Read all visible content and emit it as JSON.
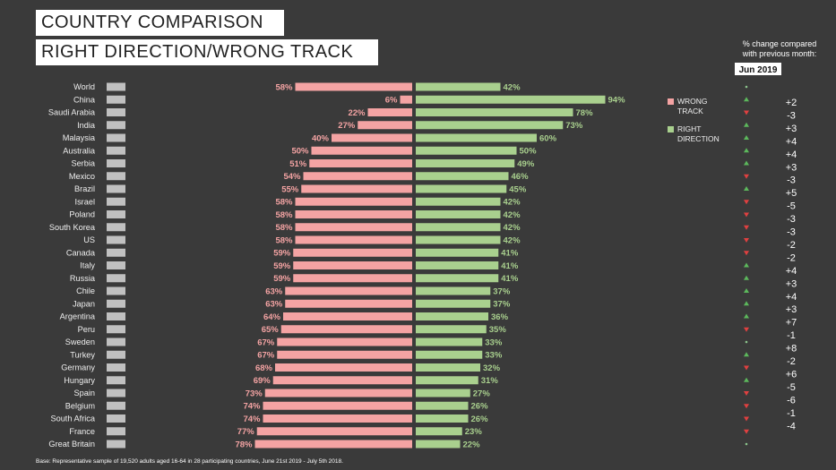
{
  "titles": [
    "COUNTRY COMPARISON",
    "RIGHT DIRECTION/WRONG TRACK"
  ],
  "change_note": [
    "% change compared",
    "with previous month:"
  ],
  "month": "Jun 2019",
  "footer": "Base: Representative sample of 19,520 adults aged 16-64 in 28 participating countries, June 21st 2019 - July 5th 2018.",
  "colors": {
    "wrong": "#f4a3a3",
    "right": "#a9d08e",
    "up": "#5cb85c",
    "down": "#e04040"
  },
  "chart_data": {
    "type": "bar",
    "orientation": "horizontal",
    "categories": [
      "World",
      "China",
      "Saudi Arabia",
      "India",
      "Malaysia",
      "Australia",
      "Serbia",
      "Mexico",
      "Brazil",
      "Israel",
      "Poland",
      "South Korea",
      "US",
      "Canada",
      "Italy",
      "Russia",
      "Chile",
      "Japan",
      "Argentina",
      "Peru",
      "Sweden",
      "Turkey",
      "Germany",
      "Hungary",
      "Spain",
      "Belgium",
      "South Africa",
      "France",
      "Great Britain"
    ],
    "series": [
      {
        "name": "WRONG TRACK",
        "values": [
          58,
          6,
          22,
          27,
          40,
          50,
          51,
          54,
          55,
          58,
          58,
          58,
          58,
          59,
          59,
          59,
          63,
          63,
          64,
          65,
          67,
          67,
          68,
          69,
          73,
          74,
          74,
          77,
          78
        ]
      },
      {
        "name": "RIGHT DIRECTION",
        "values": [
          42,
          94,
          78,
          73,
          60,
          50,
          49,
          46,
          45,
          42,
          42,
          42,
          42,
          41,
          41,
          41,
          37,
          37,
          36,
          35,
          33,
          33,
          32,
          31,
          27,
          26,
          26,
          23,
          22
        ]
      }
    ],
    "legend": [
      "WRONG TRACK",
      "RIGHT DIRECTION"
    ],
    "legend_position": "right",
    "value_suffix": "%",
    "changes": [
      "+2",
      "-3",
      "+3",
      "+4",
      "+4",
      "+3",
      "-3",
      "+5",
      "-5",
      "-3",
      "-3",
      "-2",
      "-2",
      "+4",
      "+3",
      "+4",
      "+3",
      "+7",
      "-1",
      "+8",
      "-2",
      "+6",
      "-5",
      "-6",
      "-1",
      "-4"
    ],
    "change_arrows": [
      "",
      "up",
      "down",
      "up",
      "up",
      "up",
      "up",
      "down",
      "up",
      "down",
      "down",
      "down",
      "down",
      "down",
      "up",
      "up",
      "up",
      "up",
      "up",
      "down",
      "",
      "up",
      "down",
      "up",
      "down",
      "down",
      "down",
      "down",
      ""
    ]
  }
}
